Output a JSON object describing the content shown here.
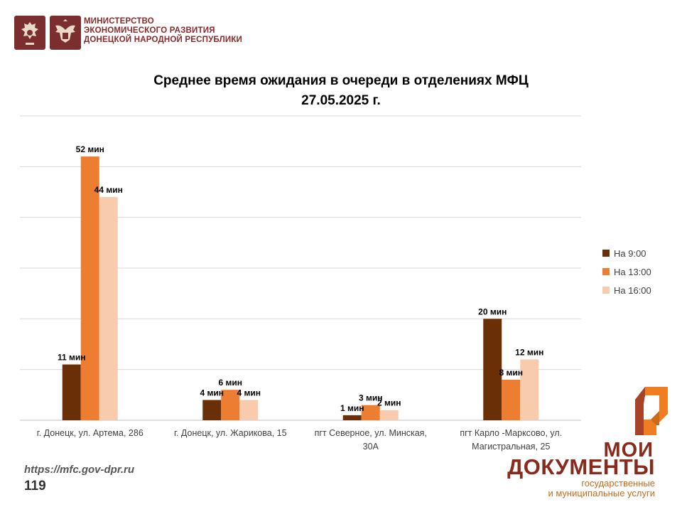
{
  "header": {
    "ministry_lines": [
      "МИНИСТЕРСТВО",
      "ЭКОНОМИЧЕСКОГО РАЗВИТИЯ",
      "ДОНЕЦКОЙ НАРОДНОЙ РЕСПУБЛИКИ"
    ],
    "colors": {
      "emblem_bg": "#7a2e2e",
      "ministry_text": "#8a2a2a"
    }
  },
  "chart_data": {
    "type": "bar",
    "title_lines": [
      "Среднее время ожидания в очереди в отделениях МФЦ",
      "27.05.2025 г."
    ],
    "categories": [
      [
        "г. Донецк, ул. Артема, 286"
      ],
      [
        "г. Донецк, ул. Жарикова, 15"
      ],
      [
        "пгт Северное, ул. Минская,",
        "30А"
      ],
      [
        "пгт Карло -Марксово, ул.",
        "Магистральная, 25"
      ]
    ],
    "series": [
      {
        "name": "На 9:00",
        "color": "#6b2f08",
        "values": [
          11,
          4,
          1,
          20
        ],
        "labels": [
          "11 мин",
          "4 мин",
          "1 мин",
          "20 мин"
        ]
      },
      {
        "name": "На 13:00",
        "color": "#ed7d31",
        "values": [
          52,
          6,
          3,
          8
        ],
        "labels": [
          "52 мин",
          "6 мин",
          "3 мин",
          "8 мин"
        ]
      },
      {
        "name": "На 16:00",
        "color": "#f8cbad",
        "values": [
          44,
          4,
          2,
          12
        ],
        "labels": [
          "44 мин",
          "4 мин",
          "2 мин",
          "12 мин"
        ]
      }
    ],
    "ylim": [
      0,
      60
    ],
    "grid": true,
    "legend_position": "right",
    "data_labels": true
  },
  "footer": {
    "url": "https://mfc.gov-dpr.ru",
    "page_number": "119",
    "brand_word1": "МОИ",
    "brand_word2": "ДОКУМЕНТЫ",
    "brand_tagline": [
      "государственные",
      "и муниципальные услуги"
    ],
    "colors": {
      "brand_dark": "#8a2a1c",
      "brand_orange": "#c96b1a"
    }
  }
}
